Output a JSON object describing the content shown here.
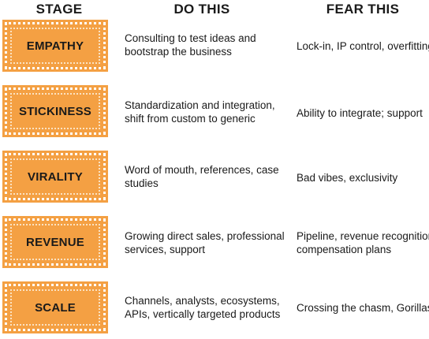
{
  "headers": {
    "stage": "STAGE",
    "do_this": "DO THIS",
    "fear_this": "FEAR THIS"
  },
  "rows": [
    {
      "stage": "EMPATHY",
      "do_line1": "Consulting to test ideas and",
      "do_line2": "bootstrap the business",
      "fear_line1": "Lock-in, IP control, overfitting",
      "fear_line2": ""
    },
    {
      "stage": "STICKINESS",
      "do_line1": "Standardization and integration,",
      "do_line2": "shift from custom to generic",
      "fear_line1": "Ability to integrate; support",
      "fear_line2": ""
    },
    {
      "stage": "VIRALITY",
      "do_line1": "Word of mouth, references, case",
      "do_line2": "studies",
      "fear_line1": "Bad vibes, exclusivity",
      "fear_line2": ""
    },
    {
      "stage": "REVENUE",
      "do_line1": "Growing direct sales, professional",
      "do_line2": "services, support",
      "fear_line1": "Pipeline, revenue recognition,",
      "fear_line2": "compensation plans"
    },
    {
      "stage": "SCALE",
      "do_line1": "Channels, analysts, ecosystems,",
      "do_line2": "APIs, vertically targeted products",
      "fear_line1": "Crossing the chasm, Gorillas",
      "fear_line2": ""
    }
  ],
  "colors": {
    "stage_fill": "#f4a043",
    "text": "#1a1a1a"
  }
}
